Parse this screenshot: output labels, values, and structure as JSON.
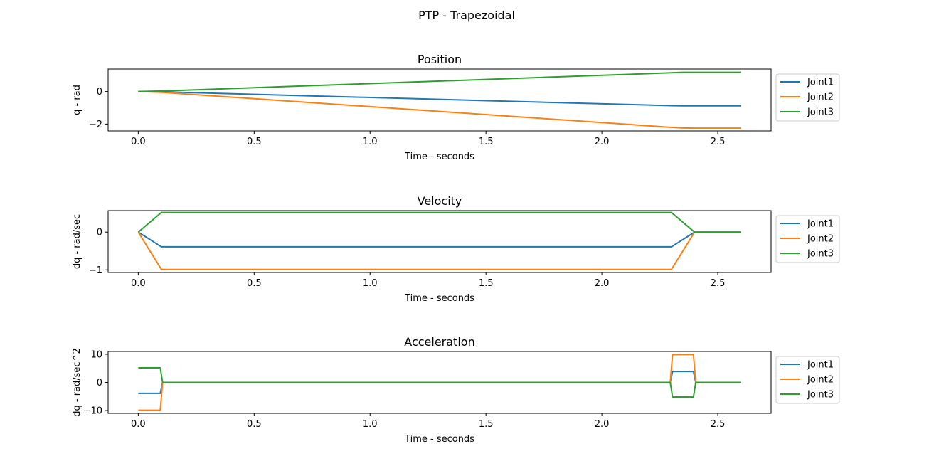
{
  "suptitle": "PTP - Trapezoidal",
  "chart_data": [
    {
      "type": "line",
      "title": "Position",
      "xlabel": "Time - seconds",
      "ylabel": "q - rad",
      "xlim": [
        -0.13,
        2.73
      ],
      "ylim": [
        -2.42,
        1.38
      ],
      "xticks": [
        0.0,
        0.5,
        1.0,
        1.5,
        2.0,
        2.5
      ],
      "xtick_labels": [
        "0.0",
        "0.5",
        "1.0",
        "1.5",
        "2.0",
        "2.5"
      ],
      "yticks": [
        0,
        -2
      ],
      "ytick_labels": [
        "0",
        "−2"
      ],
      "legend": "outside-right",
      "grid": false,
      "series": [
        {
          "name": "Joint1",
          "color": "#1f77b4",
          "x": [
            0,
            0.1,
            2.3,
            2.35,
            2.4,
            2.6
          ],
          "y": [
            0,
            -0.02,
            -0.87,
            -0.88,
            -0.88,
            -0.88
          ]
        },
        {
          "name": "Joint2",
          "color": "#ff7f0e",
          "x": [
            0,
            0.1,
            2.3,
            2.35,
            2.4,
            2.6
          ],
          "y": [
            0,
            -0.05,
            -2.2,
            -2.24,
            -2.25,
            -2.25
          ]
        },
        {
          "name": "Joint3",
          "color": "#2ca02c",
          "x": [
            0,
            0.1,
            2.3,
            2.35,
            2.4,
            2.6
          ],
          "y": [
            0,
            0.03,
            1.15,
            1.18,
            1.18,
            1.18
          ]
        }
      ]
    },
    {
      "type": "line",
      "title": "Velocity",
      "xlabel": "Time - seconds",
      "ylabel": "dq - rad/sec",
      "xlim": [
        -0.13,
        2.73
      ],
      "ylim": [
        -1.07,
        0.57
      ],
      "xticks": [
        0.0,
        0.5,
        1.0,
        1.5,
        2.0,
        2.5
      ],
      "xtick_labels": [
        "0.0",
        "0.5",
        "1.0",
        "1.5",
        "2.0",
        "2.5"
      ],
      "yticks": [
        0,
        -1
      ],
      "ytick_labels": [
        "0",
        "−1"
      ],
      "legend": "outside-right",
      "grid": false,
      "series": [
        {
          "name": "Joint1",
          "color": "#1f77b4",
          "x": [
            0,
            0.1,
            2.3,
            2.4,
            2.6
          ],
          "y": [
            0,
            -0.39,
            -0.39,
            0,
            0
          ]
        },
        {
          "name": "Joint2",
          "color": "#ff7f0e",
          "x": [
            0,
            0.1,
            2.3,
            2.4,
            2.6
          ],
          "y": [
            0,
            -0.99,
            -0.99,
            0,
            0
          ]
        },
        {
          "name": "Joint3",
          "color": "#2ca02c",
          "x": [
            0,
            0.1,
            2.3,
            2.4,
            2.6
          ],
          "y": [
            0,
            0.52,
            0.52,
            0,
            0
          ]
        }
      ]
    },
    {
      "type": "line",
      "title": "Acceleration",
      "xlabel": "Time - seconds",
      "ylabel": "dq - rad/sec^2",
      "xlim": [
        -0.13,
        2.73
      ],
      "ylim": [
        -11.0,
        11.0
      ],
      "xticks": [
        0.0,
        0.5,
        1.0,
        1.5,
        2.0,
        2.5
      ],
      "xtick_labels": [
        "0.0",
        "0.5",
        "1.0",
        "1.5",
        "2.0",
        "2.5"
      ],
      "yticks": [
        10,
        0,
        -10
      ],
      "ytick_labels": [
        "10",
        "0",
        "−10"
      ],
      "legend": "outside-right",
      "grid": false,
      "series": [
        {
          "name": "Joint1",
          "color": "#1f77b4",
          "x": [
            0,
            0.095,
            0.1,
            0.105,
            2.295,
            2.3,
            2.305,
            2.395,
            2.4,
            2.405,
            2.6
          ],
          "y": [
            -3.9,
            -3.9,
            -1.95,
            0,
            0,
            1.95,
            3.9,
            3.9,
            1.95,
            0,
            0
          ]
        },
        {
          "name": "Joint2",
          "color": "#ff7f0e",
          "x": [
            0,
            0.095,
            0.1,
            0.105,
            2.295,
            2.3,
            2.305,
            2.395,
            2.4,
            2.405,
            2.6
          ],
          "y": [
            -9.9,
            -9.9,
            -4.95,
            0,
            0,
            4.95,
            9.9,
            9.9,
            4.95,
            0,
            0
          ]
        },
        {
          "name": "Joint3",
          "color": "#2ca02c",
          "x": [
            0,
            0.095,
            0.1,
            0.105,
            2.295,
            2.3,
            2.305,
            2.395,
            2.4,
            2.405,
            2.6
          ],
          "y": [
            5.2,
            5.2,
            2.6,
            0,
            0,
            -2.6,
            -5.2,
            -5.2,
            -2.6,
            0,
            0
          ]
        }
      ]
    }
  ]
}
